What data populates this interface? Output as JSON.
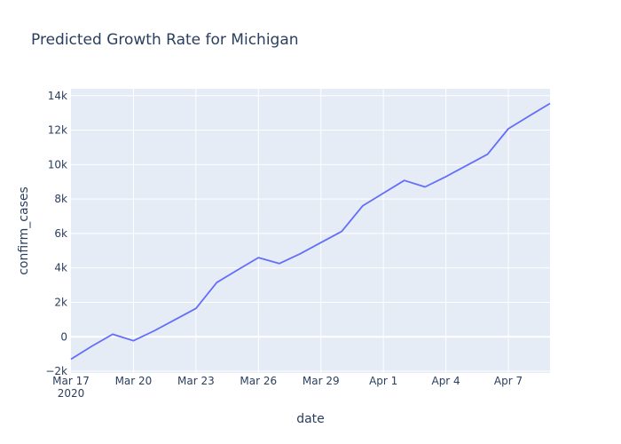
{
  "chart_data": {
    "type": "line",
    "title": "Predicted Growth Rate for Michigan",
    "xlabel": "date",
    "ylabel": "confirm_cases",
    "x_tick_labels": [
      "Mar 17",
      "Mar 20",
      "Mar 23",
      "Mar 26",
      "Mar 29",
      "Apr 1",
      "Apr 4",
      "Apr 7"
    ],
    "x_year_label": "2020",
    "y_tick_labels": [
      "−2k",
      "0",
      "2k",
      "4k",
      "6k",
      "8k",
      "10k",
      "12k",
      "14k"
    ],
    "y_ticks": [
      -2000,
      0,
      2000,
      4000,
      6000,
      8000,
      10000,
      12000,
      14000
    ],
    "xlim": [
      "2020-03-17",
      "2020-04-09"
    ],
    "ylim": [
      -2100,
      14400
    ],
    "grid": true,
    "colors": {
      "line": "#636efa",
      "plot_bg": "#e5ecf6",
      "grid": "#ffffff",
      "text": "#2a3f5f"
    },
    "series": [
      {
        "x": [
          "2020-03-17",
          "2020-03-18",
          "2020-03-19",
          "2020-03-20",
          "2020-03-21",
          "2020-03-22",
          "2020-03-23",
          "2020-03-24",
          "2020-03-25",
          "2020-03-26",
          "2020-03-27",
          "2020-03-28",
          "2020-03-29",
          "2020-03-30",
          "2020-03-31",
          "2020-04-01",
          "2020-04-02",
          "2020-04-03",
          "2020-04-04",
          "2020-04-05",
          "2020-04-06",
          "2020-04-07",
          "2020-04-08",
          "2020-04-09"
        ],
        "values": [
          -1300,
          -550,
          150,
          -230,
          350,
          1000,
          1650,
          3150,
          3880,
          4600,
          4250,
          4820,
          5470,
          6120,
          7600,
          8340,
          9080,
          8700,
          9300,
          9950,
          10600,
          12080,
          12820,
          13550
        ]
      }
    ]
  }
}
